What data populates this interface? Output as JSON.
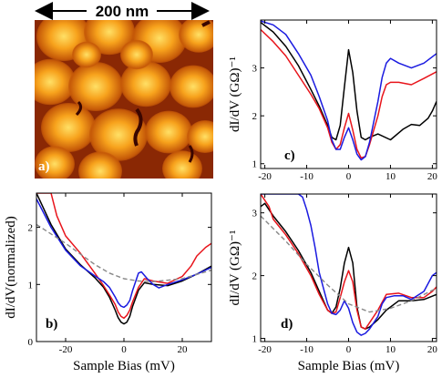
{
  "scale_bar": {
    "label": "200 nm"
  },
  "colors": {
    "black": "#000000",
    "red": "#e8141b",
    "blue": "#1a1ae0",
    "dashed": "#888888",
    "afm_dark": "#3a0600",
    "afm_mid": "#c04a06",
    "afm_bright": "#ffd23a"
  },
  "chart_data": [
    {
      "panel": "a",
      "type": "image",
      "label": "a)",
      "description_visible": "STM topography"
    },
    {
      "panel": "b",
      "type": "line",
      "label": "b)",
      "xlabel": "Sample Bias (mV)",
      "ylabel": "dI/dV(normalized)",
      "xlim": [
        -30,
        30
      ],
      "ylim": [
        0,
        2.6
      ],
      "xticks": [
        -20,
        0,
        20
      ],
      "yticks": [
        0,
        1,
        2
      ],
      "series": [
        {
          "color": "black",
          "x": [
            -30,
            -25,
            -20,
            -15,
            -10,
            -7,
            -5,
            -3,
            -2,
            -1,
            0,
            1,
            2,
            3,
            5,
            7,
            10,
            15,
            20,
            25,
            30
          ],
          "y": [
            2.6,
            2.05,
            1.62,
            1.35,
            1.12,
            0.95,
            0.78,
            0.55,
            0.42,
            0.34,
            0.31,
            0.34,
            0.44,
            0.62,
            0.9,
            1.03,
            1.0,
            0.98,
            1.06,
            1.18,
            1.32
          ]
        },
        {
          "color": "red",
          "x": [
            -30,
            -25,
            -23,
            -20,
            -15,
            -10,
            -7,
            -5,
            -3,
            -2,
            -1,
            0,
            1,
            2,
            3,
            5,
            7,
            10,
            15,
            20,
            23,
            25,
            28,
            30
          ],
          "y": [
            2.6,
            2.6,
            2.2,
            1.85,
            1.55,
            1.2,
            0.98,
            0.82,
            0.65,
            0.52,
            0.44,
            0.41,
            0.46,
            0.55,
            0.7,
            0.95,
            1.1,
            1.06,
            1.02,
            1.14,
            1.32,
            1.5,
            1.65,
            1.72
          ]
        },
        {
          "color": "blue",
          "x": [
            -30,
            -25,
            -20,
            -15,
            -10,
            -7,
            -5,
            -3,
            -2,
            -1,
            0,
            1,
            2,
            3,
            5,
            6,
            8,
            10,
            12,
            15,
            20,
            25,
            30
          ],
          "y": [
            2.5,
            2.0,
            1.6,
            1.33,
            1.15,
            1.05,
            0.95,
            0.78,
            0.68,
            0.62,
            0.6,
            0.64,
            0.72,
            0.9,
            1.2,
            1.22,
            1.1,
            1.0,
            0.94,
            1.0,
            1.08,
            1.18,
            1.3
          ]
        },
        {
          "color": "dashed",
          "dashed": true,
          "x": [
            -30,
            -20,
            -10,
            -5,
            0,
            5,
            10,
            20,
            30
          ],
          "y": [
            2.05,
            1.72,
            1.35,
            1.2,
            1.1,
            1.06,
            1.05,
            1.1,
            1.25
          ]
        }
      ]
    },
    {
      "panel": "c",
      "type": "line",
      "label": "c)",
      "ylabel": "dI/dV (GΩ)⁻¹",
      "xlim": [
        -21,
        21
      ],
      "ylim": [
        0.9,
        4.0
      ],
      "xticks": [
        -20,
        -10,
        0,
        10,
        20
      ],
      "yticks": [
        1,
        2,
        3
      ],
      "series": [
        {
          "color": "black",
          "x": [
            -21,
            -18,
            -15,
            -12,
            -9,
            -7,
            -5,
            -4,
            -3,
            -2,
            -1,
            0,
            1,
            2,
            3,
            4,
            5,
            7,
            10,
            13,
            15,
            17,
            19,
            20,
            21
          ],
          "y": [
            3.95,
            3.75,
            3.45,
            3.05,
            2.55,
            2.2,
            1.8,
            1.55,
            1.5,
            1.8,
            2.6,
            3.38,
            2.9,
            2.1,
            1.55,
            1.5,
            1.55,
            1.62,
            1.5,
            1.72,
            1.82,
            1.8,
            1.95,
            2.1,
            2.3
          ]
        },
        {
          "color": "red",
          "x": [
            -21,
            -18,
            -15,
            -12,
            -9,
            -7,
            -5,
            -4,
            -3,
            -2,
            -1,
            0,
            1,
            2,
            3,
            4,
            5,
            7,
            8,
            9,
            10,
            12,
            15,
            18,
            21
          ],
          "y": [
            3.8,
            3.55,
            3.25,
            2.85,
            2.45,
            2.15,
            1.75,
            1.45,
            1.3,
            1.4,
            1.75,
            2.05,
            1.7,
            1.3,
            1.12,
            1.15,
            1.4,
            2.0,
            2.4,
            2.65,
            2.7,
            2.7,
            2.65,
            2.78,
            2.92
          ]
        },
        {
          "color": "blue",
          "x": [
            -21,
            -18,
            -15,
            -12,
            -9,
            -7,
            -5,
            -4,
            -3,
            -2,
            -1,
            0,
            1,
            2,
            3,
            4,
            5,
            7,
            8,
            9,
            10,
            12,
            15,
            18,
            21
          ],
          "y": [
            3.98,
            3.9,
            3.7,
            3.3,
            2.85,
            2.4,
            1.9,
            1.5,
            1.3,
            1.3,
            1.55,
            1.75,
            1.5,
            1.2,
            1.08,
            1.15,
            1.45,
            2.3,
            2.8,
            3.1,
            3.2,
            3.1,
            3.0,
            3.1,
            3.3
          ]
        }
      ]
    },
    {
      "panel": "d",
      "type": "line",
      "label": "d)",
      "xlabel": "Sample Bias (mV)",
      "ylabel": "dI/dV (GΩ)⁻¹",
      "xlim": [
        -21,
        21
      ],
      "ylim": [
        0.95,
        3.3
      ],
      "xticks": [
        -20,
        -10,
        0,
        10,
        20
      ],
      "yticks": [
        1,
        2,
        3
      ],
      "series": [
        {
          "color": "black",
          "x": [
            -21,
            -20,
            -18,
            -15,
            -12,
            -9,
            -7,
            -5,
            -4,
            -3,
            -2,
            -1,
            0,
            1,
            2,
            3,
            4,
            5,
            7,
            9,
            12,
            15,
            18,
            21
          ],
          "y": [
            3.1,
            3.15,
            2.95,
            2.7,
            2.4,
            2.05,
            1.75,
            1.45,
            1.4,
            1.5,
            1.8,
            2.2,
            2.45,
            2.2,
            1.5,
            1.18,
            1.15,
            1.18,
            1.3,
            1.45,
            1.6,
            1.6,
            1.62,
            1.7
          ]
        },
        {
          "color": "red",
          "x": [
            -21,
            -19,
            -18,
            -15,
            -12,
            -9,
            -7,
            -5,
            -4,
            -3,
            -2,
            -1,
            0,
            1,
            2,
            3,
            4,
            5,
            7,
            9,
            12,
            15,
            18,
            20,
            21
          ],
          "y": [
            3.3,
            3.1,
            2.9,
            2.65,
            2.35,
            2.0,
            1.7,
            1.45,
            1.4,
            1.42,
            1.65,
            1.9,
            2.08,
            1.9,
            1.45,
            1.18,
            1.15,
            1.25,
            1.45,
            1.7,
            1.72,
            1.65,
            1.65,
            1.75,
            1.82
          ]
        },
        {
          "color": "blue",
          "x": [
            -21,
            -12,
            -11,
            -10,
            -9,
            -8,
            -7,
            -5,
            -4,
            -3,
            -2,
            -1,
            0,
            1,
            2,
            3,
            4,
            5,
            7,
            8,
            9,
            11,
            13,
            15,
            18,
            20,
            21
          ],
          "y": [
            3.3,
            3.3,
            3.25,
            3.05,
            2.8,
            2.45,
            2.05,
            1.55,
            1.4,
            1.38,
            1.45,
            1.6,
            1.48,
            1.25,
            1.1,
            1.05,
            1.08,
            1.15,
            1.35,
            1.55,
            1.65,
            1.68,
            1.68,
            1.62,
            1.75,
            2.0,
            2.05
          ]
        },
        {
          "color": "dashed",
          "dashed": true,
          "x": [
            -21,
            -15,
            -10,
            -5,
            0,
            5,
            10,
            15,
            21
          ],
          "y": [
            2.95,
            2.55,
            2.18,
            1.85,
            1.55,
            1.42,
            1.48,
            1.6,
            1.8
          ]
        }
      ]
    }
  ]
}
